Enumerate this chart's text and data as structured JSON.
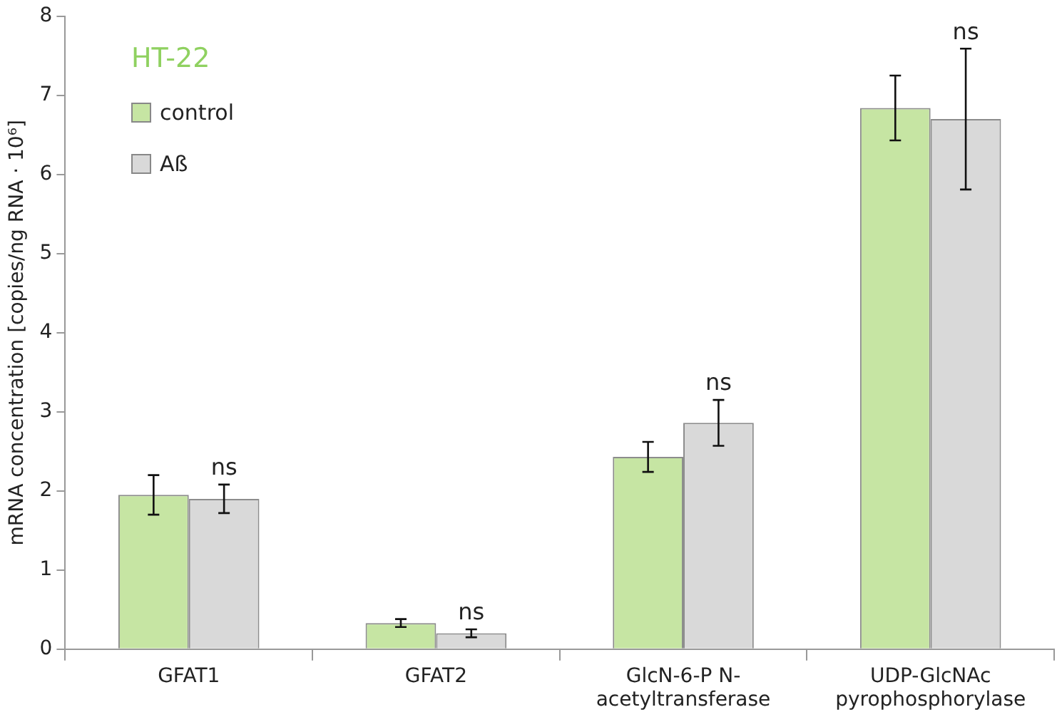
{
  "chart_data": {
    "type": "bar",
    "title": "HT-22",
    "categories": [
      "GFAT1",
      "GFAT2",
      "GlcN-6-P N-acetyltransferase",
      "UDP-GlcNAc pyrophosphorylase"
    ],
    "ylabel": "mRNA concentration [copies/ng RNA · 10⁶]",
    "ylim": [
      0,
      8
    ],
    "yticks": [
      0,
      1,
      2,
      3,
      4,
      5,
      6,
      7,
      8
    ],
    "grid": false,
    "legend": "top left",
    "series": [
      {
        "name": "control",
        "color": "#c6e5a3",
        "values": [
          1.95,
          0.33,
          2.43,
          6.84
        ],
        "errors": [
          0.25,
          0.05,
          0.19,
          0.41
        ]
      },
      {
        "name": "Aß",
        "color": "#d9d9d9",
        "values": [
          1.9,
          0.2,
          2.86,
          6.7
        ],
        "errors": [
          0.18,
          0.05,
          0.29,
          0.89
        ]
      }
    ],
    "annotations": [
      "ns",
      "ns",
      "ns",
      "ns"
    ]
  }
}
